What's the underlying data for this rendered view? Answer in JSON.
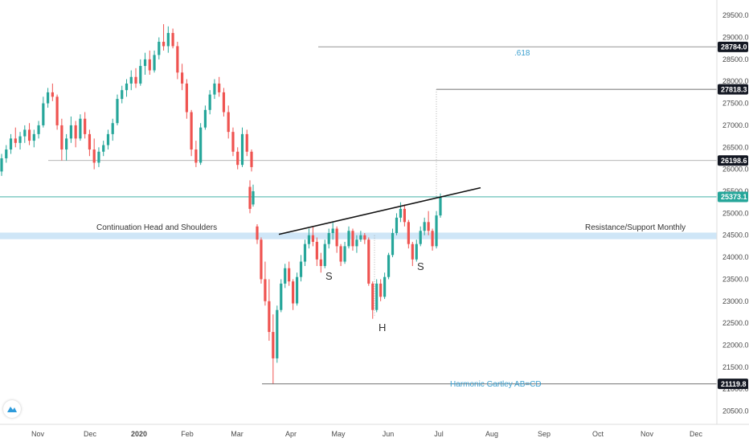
{
  "colors": {
    "up": "#26a69a",
    "down": "#ef5350",
    "band": "#cfe6f7",
    "current": "#26a69a",
    "label_blue": "#3a9fcf",
    "neutral_line": "#9e9e9e"
  },
  "chart_data": {
    "type": "candlestick",
    "ylim": [
      20200,
      29850
    ],
    "x_ticks": [
      "Nov",
      "Dec",
      "2020",
      "Feb",
      "Mar",
      "Apr",
      "May",
      "Jun",
      "Jul",
      "Aug",
      "Sep",
      "Oct",
      "Nov",
      "Dec"
    ],
    "y_ticks": [
      20500.0,
      21000.0,
      21500.0,
      22000.0,
      22500.0,
      23000.0,
      23500.0,
      24000.0,
      24500.0,
      25000.0,
      25500.0,
      26000.0,
      26500.0,
      27000.0,
      27500.0,
      28000.0,
      28500.0,
      29000.0,
      29500.0
    ],
    "price_levels": [
      {
        "label": "28784.0",
        "value": 28784.0,
        "style": "dark"
      },
      {
        "label": "27818.3",
        "value": 27818.3,
        "style": "dark"
      },
      {
        "label": "26198.6",
        "value": 26198.6,
        "style": "dark"
      },
      {
        "label": "25373.1",
        "value": 25373.1,
        "style": "current"
      },
      {
        "label": "21119.8",
        "value": 21119.8,
        "style": "dark"
      }
    ],
    "support_band": {
      "low": 24410,
      "high": 24560
    },
    "annotations": {
      "fib": ".618",
      "pattern": "Continuation Head and Shoulders",
      "zone": "Resistance/Support Monthly",
      "harmonic": "Harmonic Gartley AB=CD",
      "left_shoulder": "S",
      "head": "H",
      "right_shoulder": "S"
    },
    "neckline": {
      "start": 24520,
      "end": 25580
    },
    "series": [
      {
        "o": 25950,
        "h": 26350,
        "l": 25850,
        "c": 26250
      },
      {
        "o": 26250,
        "h": 26550,
        "l": 26150,
        "c": 26450
      },
      {
        "o": 26450,
        "h": 26800,
        "l": 26350,
        "c": 26700
      },
      {
        "o": 26700,
        "h": 26950,
        "l": 26500,
        "c": 26600
      },
      {
        "o": 26600,
        "h": 26850,
        "l": 26450,
        "c": 26750
      },
      {
        "o": 26750,
        "h": 27000,
        "l": 26600,
        "c": 26900
      },
      {
        "o": 26900,
        "h": 27050,
        "l": 26550,
        "c": 26650
      },
      {
        "o": 26650,
        "h": 26900,
        "l": 26500,
        "c": 26800
      },
      {
        "o": 26800,
        "h": 27100,
        "l": 26700,
        "c": 27000
      },
      {
        "o": 27000,
        "h": 27650,
        "l": 26950,
        "c": 27500
      },
      {
        "o": 27500,
        "h": 27850,
        "l": 27400,
        "c": 27750
      },
      {
        "o": 27750,
        "h": 27950,
        "l": 27550,
        "c": 27650
      },
      {
        "o": 27650,
        "h": 27700,
        "l": 26900,
        "c": 27000
      },
      {
        "o": 27000,
        "h": 27150,
        "l": 26200,
        "c": 26450
      },
      {
        "o": 26450,
        "h": 26800,
        "l": 26200,
        "c": 26700
      },
      {
        "o": 26700,
        "h": 27200,
        "l": 26600,
        "c": 27000
      },
      {
        "o": 27000,
        "h": 27100,
        "l": 26500,
        "c": 26700
      },
      {
        "o": 26700,
        "h": 27250,
        "l": 26650,
        "c": 27150
      },
      {
        "o": 27150,
        "h": 27300,
        "l": 26700,
        "c": 26800
      },
      {
        "o": 26800,
        "h": 26900,
        "l": 26300,
        "c": 26450
      },
      {
        "o": 26450,
        "h": 26700,
        "l": 26000,
        "c": 26150
      },
      {
        "o": 26150,
        "h": 26500,
        "l": 26050,
        "c": 26400
      },
      {
        "o": 26400,
        "h": 26650,
        "l": 26300,
        "c": 26550
      },
      {
        "o": 26550,
        "h": 26900,
        "l": 26450,
        "c": 26800
      },
      {
        "o": 26800,
        "h": 27150,
        "l": 26650,
        "c": 27050
      },
      {
        "o": 27050,
        "h": 27700,
        "l": 27000,
        "c": 27600
      },
      {
        "o": 27600,
        "h": 27900,
        "l": 27500,
        "c": 27800
      },
      {
        "o": 27800,
        "h": 28050,
        "l": 27650,
        "c": 27950
      },
      {
        "o": 27950,
        "h": 28250,
        "l": 27800,
        "c": 28100
      },
      {
        "o": 28100,
        "h": 28300,
        "l": 27850,
        "c": 27950
      },
      {
        "o": 27950,
        "h": 28500,
        "l": 27900,
        "c": 28350
      },
      {
        "o": 28350,
        "h": 28650,
        "l": 28150,
        "c": 28500
      },
      {
        "o": 28500,
        "h": 28700,
        "l": 28150,
        "c": 28250
      },
      {
        "o": 28250,
        "h": 28700,
        "l": 28200,
        "c": 28600
      },
      {
        "o": 28600,
        "h": 29000,
        "l": 28500,
        "c": 28900
      },
      {
        "o": 28900,
        "h": 29300,
        "l": 28700,
        "c": 28800
      },
      {
        "o": 28800,
        "h": 29250,
        "l": 28650,
        "c": 29100
      },
      {
        "o": 29100,
        "h": 29200,
        "l": 28750,
        "c": 28800
      },
      {
        "o": 28800,
        "h": 28900,
        "l": 28050,
        "c": 28200
      },
      {
        "o": 28200,
        "h": 28400,
        "l": 27800,
        "c": 27950
      },
      {
        "o": 27950,
        "h": 28050,
        "l": 27150,
        "c": 27300
      },
      {
        "o": 27300,
        "h": 27350,
        "l": 26300,
        "c": 26450
      },
      {
        "o": 26450,
        "h": 26650,
        "l": 26050,
        "c": 26150
      },
      {
        "o": 26150,
        "h": 27050,
        "l": 26100,
        "c": 26950
      },
      {
        "o": 26950,
        "h": 27450,
        "l": 26900,
        "c": 27350
      },
      {
        "o": 27350,
        "h": 27800,
        "l": 27250,
        "c": 27700
      },
      {
        "o": 27700,
        "h": 28050,
        "l": 27600,
        "c": 27950
      },
      {
        "o": 27950,
        "h": 28100,
        "l": 27650,
        "c": 27750
      },
      {
        "o": 27750,
        "h": 27850,
        "l": 27200,
        "c": 27300
      },
      {
        "o": 27300,
        "h": 27450,
        "l": 26700,
        "c": 26850
      },
      {
        "o": 26850,
        "h": 26950,
        "l": 26300,
        "c": 26400
      },
      {
        "o": 26400,
        "h": 26500,
        "l": 26000,
        "c": 26100
      },
      {
        "o": 26100,
        "h": 26950,
        "l": 26050,
        "c": 26800
      },
      {
        "o": 26800,
        "h": 26900,
        "l": 26300,
        "c": 26400
      },
      {
        "o": 26400,
        "h": 26450,
        "l": 25950,
        "c": 26050
      },
      {
        "o": 25600,
        "h": 25750,
        "l": 25000,
        "c": 25100
      },
      {
        "o": 25200,
        "h": 25650,
        "l": 25150,
        "c": 25500
      },
      {
        "o": 24700,
        "h": 24750,
        "l": 24300,
        "c": 24400
      },
      {
        "o": 24400,
        "h": 24450,
        "l": 23400,
        "c": 23500
      },
      {
        "o": 23500,
        "h": 23900,
        "l": 22900,
        "c": 23000
      },
      {
        "o": 23000,
        "h": 23500,
        "l": 22100,
        "c": 22300
      },
      {
        "o": 22300,
        "h": 22700,
        "l": 21120,
        "c": 21700
      },
      {
        "o": 21700,
        "h": 22900,
        "l": 21600,
        "c": 22800
      },
      {
        "o": 22800,
        "h": 23500,
        "l": 22750,
        "c": 23400
      },
      {
        "o": 23400,
        "h": 23850,
        "l": 23300,
        "c": 23750
      },
      {
        "o": 23750,
        "h": 23900,
        "l": 23350,
        "c": 23450
      },
      {
        "o": 23450,
        "h": 23500,
        "l": 22800,
        "c": 22950
      },
      {
        "o": 22950,
        "h": 23650,
        "l": 22900,
        "c": 23550
      },
      {
        "o": 23550,
        "h": 24050,
        "l": 23450,
        "c": 23900
      },
      {
        "o": 23900,
        "h": 24400,
        "l": 23800,
        "c": 24300
      },
      {
        "o": 24300,
        "h": 24650,
        "l": 24200,
        "c": 24500
      },
      {
        "o": 24500,
        "h": 24700,
        "l": 24250,
        "c": 24350
      },
      {
        "o": 24350,
        "h": 24450,
        "l": 23800,
        "c": 23950
      },
      {
        "o": 23950,
        "h": 24100,
        "l": 23650,
        "c": 23800
      },
      {
        "o": 23800,
        "h": 24400,
        "l": 23750,
        "c": 24300
      },
      {
        "o": 24300,
        "h": 24650,
        "l": 24200,
        "c": 24550
      },
      {
        "o": 24550,
        "h": 24800,
        "l": 24400,
        "c": 24650
      },
      {
        "o": 24650,
        "h": 24700,
        "l": 24100,
        "c": 24250
      },
      {
        "o": 24250,
        "h": 24300,
        "l": 23800,
        "c": 23900
      },
      {
        "o": 23900,
        "h": 24350,
        "l": 23850,
        "c": 24250
      },
      {
        "o": 24250,
        "h": 24700,
        "l": 24200,
        "c": 24600
      },
      {
        "o": 24600,
        "h": 24650,
        "l": 24150,
        "c": 24250
      },
      {
        "o": 24250,
        "h": 24500,
        "l": 24100,
        "c": 24400
      },
      {
        "o": 24400,
        "h": 24600,
        "l": 24350,
        "c": 24500
      },
      {
        "o": 24500,
        "h": 24550,
        "l": 24300,
        "c": 24400
      },
      {
        "o": 24400,
        "h": 24450,
        "l": 23350,
        "c": 23400
      },
      {
        "o": 23400,
        "h": 23450,
        "l": 22600,
        "c": 22800
      },
      {
        "o": 22800,
        "h": 23500,
        "l": 22750,
        "c": 23400
      },
      {
        "o": 23400,
        "h": 23500,
        "l": 23000,
        "c": 23100
      },
      {
        "o": 23100,
        "h": 23650,
        "l": 23050,
        "c": 23550
      },
      {
        "o": 23550,
        "h": 24100,
        "l": 23500,
        "c": 24050
      },
      {
        "o": 24050,
        "h": 24650,
        "l": 24000,
        "c": 24550
      },
      {
        "o": 24550,
        "h": 25000,
        "l": 24500,
        "c": 24900
      },
      {
        "o": 24900,
        "h": 25250,
        "l": 24800,
        "c": 25100
      },
      {
        "o": 25100,
        "h": 25200,
        "l": 24700,
        "c": 24800
      },
      {
        "o": 24800,
        "h": 24850,
        "l": 24200,
        "c": 24300
      },
      {
        "o": 24300,
        "h": 24350,
        "l": 23800,
        "c": 23950
      },
      {
        "o": 23950,
        "h": 24400,
        "l": 23900,
        "c": 24300
      },
      {
        "o": 24300,
        "h": 24700,
        "l": 24250,
        "c": 24600
      },
      {
        "o": 24600,
        "h": 24900,
        "l": 24500,
        "c": 24800
      },
      {
        "o": 24800,
        "h": 25050,
        "l": 24500,
        "c": 24600
      },
      {
        "o": 24600,
        "h": 24650,
        "l": 24150,
        "c": 24250
      },
      {
        "o": 24250,
        "h": 25050,
        "l": 24200,
        "c": 24950
      },
      {
        "o": 24950,
        "h": 25450,
        "l": 24900,
        "c": 25373.1
      }
    ]
  }
}
